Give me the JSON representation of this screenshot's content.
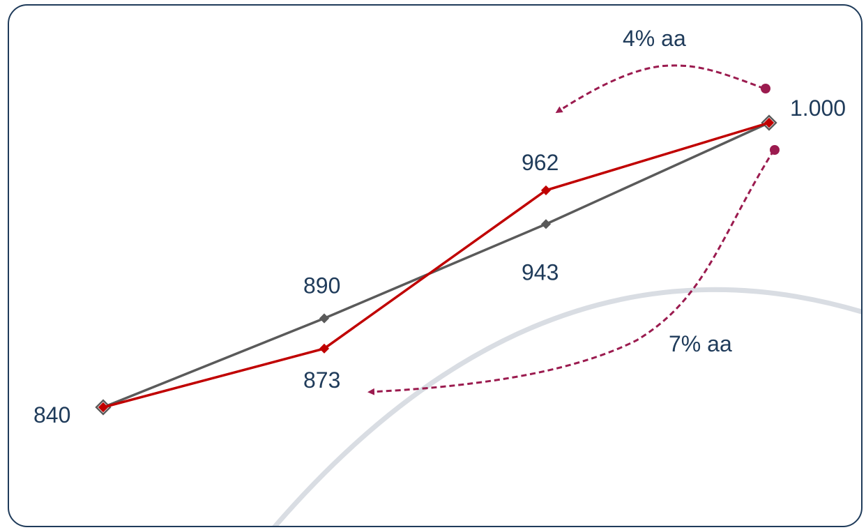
{
  "chart_data": {
    "type": "line",
    "x": [
      1,
      2,
      3,
      4
    ],
    "ylim": [
      820,
      1020
    ],
    "grid": false,
    "legend": "none",
    "series": [
      {
        "values": [
          840,
          890,
          943,
          1000
        ],
        "labels": [
          "840",
          "890",
          "943",
          "1.000"
        ],
        "color": "#5a5a5a"
      },
      {
        "values": [
          840,
          873,
          962,
          1000
        ],
        "labels": [
          "",
          "873",
          "962",
          ""
        ],
        "color": "#c00000"
      }
    ],
    "annotations": [
      {
        "text": "4% aa",
        "color": "#9b1b4f"
      },
      {
        "text": "7% aa",
        "color": "#9b1b4f"
      }
    ]
  },
  "colors": {
    "frame": "#1f3b5a",
    "text": "#1f3b5a",
    "arc": "#d9dde3"
  }
}
